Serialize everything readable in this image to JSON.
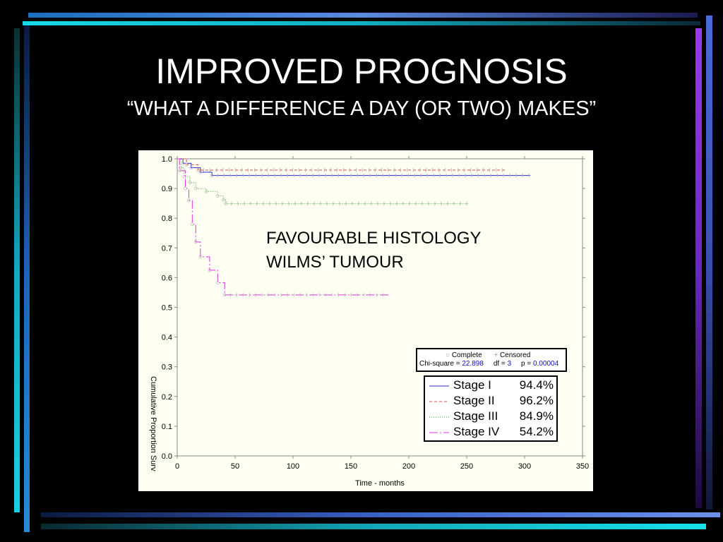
{
  "slide": {
    "title": "IMPROVED PROGNOSIS",
    "subtitle": "“WHAT A DIFFERENCE A DAY (OR TWO) MAKES”"
  },
  "chart_data": {
    "type": "line",
    "xlabel": "Time - months",
    "ylabel": "Cumulative Proportion Surv",
    "xlim": [
      0,
      350
    ],
    "ylim": [
      0,
      1
    ],
    "x_ticks": [
      "0",
      "50",
      "100",
      "150",
      "200",
      "250",
      "300",
      "350"
    ],
    "y_ticks": [
      "0.0",
      "0.1",
      "0.2",
      "0.3",
      "0.4",
      "0.5",
      "0.6",
      "0.7",
      "0.8",
      "0.9",
      "1.0"
    ],
    "grid": false,
    "annotation": [
      "FAVOURABLE HISTOLOGY",
      "WILMS’ TUMOUR"
    ],
    "marker_legend": {
      "complete": "Complete",
      "censored": "Censored"
    },
    "statistics": {
      "chi_label": "Chi-square =",
      "chi_value": "22.898",
      "df_label": "df =",
      "df_value": "3",
      "p_label": "p =",
      "p_value": "0.00004"
    },
    "series": [
      {
        "name": "Stage I",
        "label": "94.4%",
        "color": "#2a2ad0",
        "dash": "",
        "points": [
          [
            0,
            1.0
          ],
          [
            5,
            0.985
          ],
          [
            12,
            0.97
          ],
          [
            20,
            0.955
          ],
          [
            30,
            0.944
          ],
          [
            305,
            0.944
          ]
        ]
      },
      {
        "name": "Stage II",
        "label": "96.2%",
        "color": "#e04848",
        "dash": "4,3",
        "points": [
          [
            0,
            1.0
          ],
          [
            8,
            0.98
          ],
          [
            18,
            0.962
          ],
          [
            283,
            0.962
          ]
        ]
      },
      {
        "name": "Stage III",
        "label": "84.9%",
        "color": "#30b030",
        "dash": "1,2",
        "points": [
          [
            0,
            1.0
          ],
          [
            3,
            0.97
          ],
          [
            6,
            0.94
          ],
          [
            11,
            0.92
          ],
          [
            16,
            0.9
          ],
          [
            25,
            0.89
          ],
          [
            35,
            0.875
          ],
          [
            40,
            0.862
          ],
          [
            42,
            0.849
          ],
          [
            252,
            0.849
          ]
        ]
      },
      {
        "name": "Stage IV",
        "label": "54.2%",
        "color": "#e030e0",
        "dash": "12,3,2,3",
        "points": [
          [
            0,
            1.0
          ],
          [
            2,
            0.96
          ],
          [
            7,
            0.9
          ],
          [
            10,
            0.86
          ],
          [
            13,
            0.78
          ],
          [
            16,
            0.72
          ],
          [
            20,
            0.67
          ],
          [
            28,
            0.625
          ],
          [
            35,
            0.583
          ],
          [
            41,
            0.542
          ],
          [
            183,
            0.542
          ]
        ]
      }
    ]
  }
}
